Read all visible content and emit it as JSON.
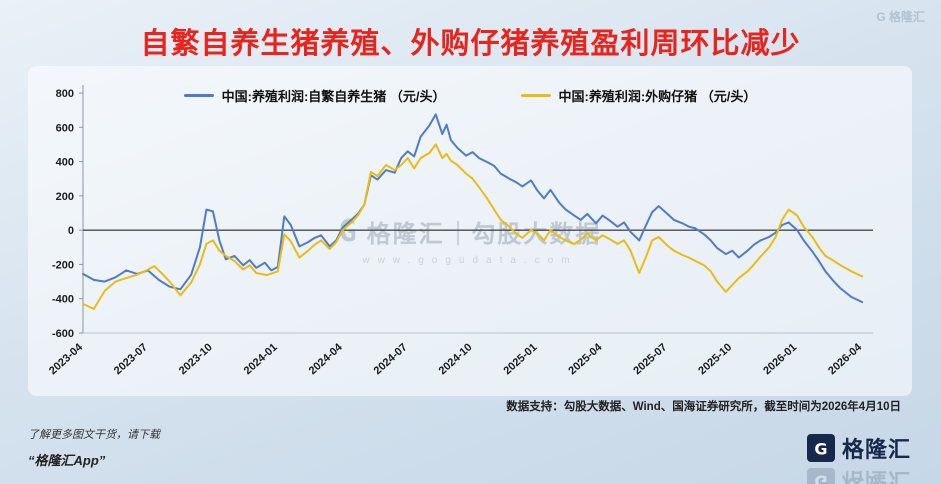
{
  "page": {
    "title": "自繁自养生猪养殖、外购仔猪养殖盈利周环比减少"
  },
  "corner_watermark": "G 格隆汇",
  "watermark": {
    "icon_letter": "G",
    "brand": "格隆汇",
    "divider": "|",
    "name": "勾股大数据",
    "url": "www.gogudata.com"
  },
  "source_note": "数据支持：勾股大数据、Wind、国海证券研究所，截至时间为2026年4月10日",
  "footer": {
    "promo_line1": "了解更多图文干货，请下载",
    "promo_line2": "“格隆汇App”",
    "brand": "格隆汇",
    "brand_initial": "G"
  },
  "colors": {
    "title_red": "#e8241c",
    "series_blue": "#4f7bc9",
    "series_yellow": "#e9bd12",
    "brand_navy": "#16284b",
    "zero_line": "#4a4a4a"
  },
  "chart_data": {
    "type": "line",
    "title": "自繁自养生猪养殖、外购仔猪养殖盈利周环比减少",
    "xlabel": "",
    "ylabel": "元/头",
    "x_unit": "months_since_2023-04",
    "xlim": [
      0,
      36.5
    ],
    "ylim": [
      -600,
      800
    ],
    "grid": false,
    "legend_position": "top-center",
    "y_ticks": [
      800,
      600,
      400,
      200,
      0,
      -200,
      -400,
      -600
    ],
    "x_ticks": [
      {
        "x": 0,
        "label": "2023-04"
      },
      {
        "x": 3,
        "label": "2023-07"
      },
      {
        "x": 6,
        "label": "2023-10"
      },
      {
        "x": 9,
        "label": "2024-01"
      },
      {
        "x": 12,
        "label": "2024-04"
      },
      {
        "x": 15,
        "label": "2024-07"
      },
      {
        "x": 18,
        "label": "2024-10"
      },
      {
        "x": 21,
        "label": "2025-01"
      },
      {
        "x": 24,
        "label": "2025-04"
      },
      {
        "x": 27,
        "label": "2025-07"
      },
      {
        "x": 30,
        "label": "2025-10"
      },
      {
        "x": 33,
        "label": "2026-01"
      },
      {
        "x": 36,
        "label": "2026-04"
      }
    ],
    "series": [
      {
        "name": "中国:养殖利润:自繁自养生猪 （元/头）",
        "color": "#4f7bc9",
        "points": [
          [
            0,
            -255
          ],
          [
            0.5,
            -290
          ],
          [
            1,
            -300
          ],
          [
            1.5,
            -275
          ],
          [
            2,
            -235
          ],
          [
            2.5,
            -255
          ],
          [
            3,
            -235
          ],
          [
            3.5,
            -290
          ],
          [
            4,
            -330
          ],
          [
            4.5,
            -345
          ],
          [
            5,
            -260
          ],
          [
            5.4,
            -100
          ],
          [
            5.7,
            120
          ],
          [
            6,
            110
          ],
          [
            6.3,
            -60
          ],
          [
            6.6,
            -170
          ],
          [
            7,
            -150
          ],
          [
            7.4,
            -205
          ],
          [
            7.7,
            -175
          ],
          [
            8,
            -220
          ],
          [
            8.4,
            -190
          ],
          [
            8.7,
            -235
          ],
          [
            9,
            -215
          ],
          [
            9.3,
            80
          ],
          [
            9.6,
            30
          ],
          [
            10,
            -95
          ],
          [
            10.4,
            -70
          ],
          [
            10.7,
            -45
          ],
          [
            11,
            -30
          ],
          [
            11.4,
            -95
          ],
          [
            11.7,
            -60
          ],
          [
            12,
            15
          ],
          [
            12.4,
            60
          ],
          [
            12.7,
            95
          ],
          [
            13,
            150
          ],
          [
            13.3,
            320
          ],
          [
            13.6,
            295
          ],
          [
            14,
            350
          ],
          [
            14.4,
            335
          ],
          [
            14.7,
            420
          ],
          [
            15,
            460
          ],
          [
            15.3,
            430
          ],
          [
            15.6,
            545
          ],
          [
            16,
            610
          ],
          [
            16.3,
            675
          ],
          [
            16.6,
            560
          ],
          [
            16.8,
            615
          ],
          [
            17,
            525
          ],
          [
            17.3,
            480
          ],
          [
            17.7,
            435
          ],
          [
            18,
            455
          ],
          [
            18.3,
            420
          ],
          [
            18.7,
            395
          ],
          [
            19,
            375
          ],
          [
            19.3,
            330
          ],
          [
            19.7,
            300
          ],
          [
            20,
            280
          ],
          [
            20.3,
            255
          ],
          [
            20.7,
            290
          ],
          [
            21,
            230
          ],
          [
            21.3,
            185
          ],
          [
            21.6,
            235
          ],
          [
            22,
            160
          ],
          [
            22.3,
            120
          ],
          [
            22.7,
            85
          ],
          [
            23,
            60
          ],
          [
            23.3,
            95
          ],
          [
            23.7,
            40
          ],
          [
            24,
            85
          ],
          [
            24.3,
            60
          ],
          [
            24.7,
            20
          ],
          [
            25,
            45
          ],
          [
            25.3,
            -10
          ],
          [
            25.7,
            -60
          ],
          [
            26,
            25
          ],
          [
            26.3,
            105
          ],
          [
            26.6,
            140
          ],
          [
            27,
            95
          ],
          [
            27.3,
            60
          ],
          [
            27.7,
            40
          ],
          [
            28,
            20
          ],
          [
            28.3,
            10
          ],
          [
            28.7,
            -25
          ],
          [
            29,
            -60
          ],
          [
            29.3,
            -105
          ],
          [
            29.7,
            -140
          ],
          [
            30,
            -120
          ],
          [
            30.3,
            -160
          ],
          [
            30.7,
            -120
          ],
          [
            31,
            -85
          ],
          [
            31.3,
            -60
          ],
          [
            31.7,
            -40
          ],
          [
            32,
            -15
          ],
          [
            32.3,
            30
          ],
          [
            32.6,
            45
          ],
          [
            33,
            0
          ],
          [
            33.3,
            -60
          ],
          [
            33.7,
            -125
          ],
          [
            34,
            -180
          ],
          [
            34.3,
            -240
          ],
          [
            34.7,
            -300
          ],
          [
            35,
            -340
          ],
          [
            35.5,
            -390
          ],
          [
            36,
            -420
          ]
        ]
      },
      {
        "name": "中国:养殖利润:外购仔猪 （元/头）",
        "color": "#e9bd12",
        "points": [
          [
            0,
            -430
          ],
          [
            0.5,
            -460
          ],
          [
            1,
            -355
          ],
          [
            1.5,
            -300
          ],
          [
            2,
            -280
          ],
          [
            2.5,
            -260
          ],
          [
            3,
            -230
          ],
          [
            3.3,
            -210
          ],
          [
            3.7,
            -260
          ],
          [
            4,
            -300
          ],
          [
            4.5,
            -380
          ],
          [
            5,
            -305
          ],
          [
            5.4,
            -200
          ],
          [
            5.7,
            -80
          ],
          [
            6,
            -60
          ],
          [
            6.3,
            -120
          ],
          [
            6.6,
            -150
          ],
          [
            7,
            -180
          ],
          [
            7.4,
            -230
          ],
          [
            7.7,
            -205
          ],
          [
            8,
            -250
          ],
          [
            8.5,
            -262
          ],
          [
            9,
            -240
          ],
          [
            9.3,
            -25
          ],
          [
            9.6,
            -65
          ],
          [
            10,
            -160
          ],
          [
            10.4,
            -120
          ],
          [
            10.7,
            -85
          ],
          [
            11,
            -60
          ],
          [
            11.4,
            -110
          ],
          [
            11.7,
            -70
          ],
          [
            12,
            0
          ],
          [
            12.4,
            45
          ],
          [
            12.7,
            85
          ],
          [
            13,
            150
          ],
          [
            13.3,
            340
          ],
          [
            13.6,
            315
          ],
          [
            14,
            380
          ],
          [
            14.4,
            350
          ],
          [
            14.7,
            380
          ],
          [
            15,
            420
          ],
          [
            15.3,
            360
          ],
          [
            15.6,
            420
          ],
          [
            16,
            450
          ],
          [
            16.3,
            500
          ],
          [
            16.6,
            420
          ],
          [
            16.8,
            445
          ],
          [
            17,
            405
          ],
          [
            17.3,
            380
          ],
          [
            17.7,
            330
          ],
          [
            18,
            300
          ],
          [
            18.3,
            250
          ],
          [
            18.7,
            180
          ],
          [
            19,
            120
          ],
          [
            19.3,
            60
          ],
          [
            19.7,
            20
          ],
          [
            20,
            -20
          ],
          [
            20.3,
            -45
          ],
          [
            20.7,
            0
          ],
          [
            21,
            -20
          ],
          [
            21.3,
            -60
          ],
          [
            21.6,
            0
          ],
          [
            22,
            -40
          ],
          [
            22.3,
            -60
          ],
          [
            22.7,
            -80
          ],
          [
            23,
            -55
          ],
          [
            23.3,
            -20
          ],
          [
            23.7,
            -60
          ],
          [
            24,
            -30
          ],
          [
            24.3,
            -50
          ],
          [
            24.7,
            -80
          ],
          [
            25,
            -60
          ],
          [
            25.3,
            -120
          ],
          [
            25.7,
            -250
          ],
          [
            26,
            -160
          ],
          [
            26.3,
            -60
          ],
          [
            26.6,
            -40
          ],
          [
            27,
            -90
          ],
          [
            27.3,
            -120
          ],
          [
            27.7,
            -145
          ],
          [
            28,
            -160
          ],
          [
            28.3,
            -180
          ],
          [
            28.7,
            -205
          ],
          [
            29,
            -240
          ],
          [
            29.3,
            -300
          ],
          [
            29.7,
            -360
          ],
          [
            30,
            -320
          ],
          [
            30.3,
            -280
          ],
          [
            30.7,
            -240
          ],
          [
            31,
            -200
          ],
          [
            31.3,
            -155
          ],
          [
            31.7,
            -100
          ],
          [
            32,
            -40
          ],
          [
            32.3,
            60
          ],
          [
            32.6,
            120
          ],
          [
            33,
            85
          ],
          [
            33.3,
            20
          ],
          [
            33.7,
            -40
          ],
          [
            34,
            -100
          ],
          [
            34.3,
            -150
          ],
          [
            34.7,
            -180
          ],
          [
            35,
            -205
          ],
          [
            35.5,
            -240
          ],
          [
            36,
            -270
          ]
        ]
      }
    ]
  }
}
